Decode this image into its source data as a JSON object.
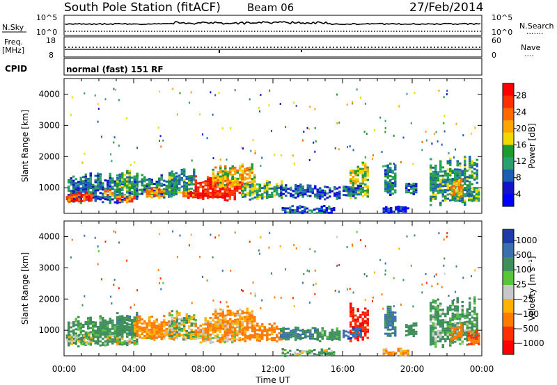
{
  "header": {
    "station": "South Pole Station (fitACF)",
    "beam": "Beam 06",
    "date": "27/Feb/2014"
  },
  "summary_panels": {
    "nsky_label": "N.Sky",
    "nsearch_label": "N.Search",
    "nsky_ticks": [
      "10^5",
      "10^0"
    ],
    "nsearch_ticks": [
      "10^5",
      "10^0"
    ],
    "freq_label": "Freq.",
    "freq_unit": "[MHz]",
    "freq_ticks": [
      "18",
      "8"
    ],
    "nave_label": "Nave",
    "nave_ticks": [
      "60",
      "0"
    ],
    "cpid_label": "CPID",
    "cpid_text": "normal (fast) 151 RF",
    "search_legend": "·······",
    "nave_legend": "····"
  },
  "chart_data": [
    {
      "type": "heatmap",
      "name": "power",
      "ylabel": "Slant Range [km]",
      "xlabel": "",
      "yticks": [
        1000,
        2000,
        3000,
        4000
      ],
      "ylim": [
        180,
        4500
      ],
      "xlim_hours": [
        0,
        24
      ],
      "colorbar_label": "Power [dB]",
      "colorbar_ticks": [
        "28",
        "24",
        "20",
        "16",
        "12",
        "8",
        "4"
      ],
      "colorbar_colors": [
        "#ff0000",
        "#ff3000",
        "#ff6a00",
        "#ffa500",
        "#f0d800",
        "#1e9a2e",
        "#2d9e6e",
        "#1a5fb0",
        "#1313cc",
        "#0000ff"
      ]
    },
    {
      "type": "heatmap",
      "name": "velocity",
      "ylabel": "Slant Range [km]",
      "xlabel": "Time UT",
      "xticks": [
        "00:00",
        "04:00",
        "08:00",
        "12:00",
        "16:00",
        "20:00",
        "00:00"
      ],
      "yticks": [
        1000,
        2000,
        3000,
        4000
      ],
      "ylim": [
        180,
        4500
      ],
      "xlim_hours": [
        0,
        24
      ],
      "colorbar_label": "Velocity [m s⁻¹]",
      "colorbar_ticks": [
        "1000",
        "500",
        "100",
        "25",
        "−25",
        "−100",
        "−500",
        "−1000"
      ],
      "colorbar_colors": [
        "#1e3ca8",
        "#3a6fb0",
        "#3f8f5a",
        "#58c43c",
        "#c8c8c8",
        "#ffb000",
        "#ff7a00",
        "#ff3000",
        "#ff0000"
      ]
    }
  ],
  "echo_regions": [
    {
      "t": [
        0.2,
        4.2
      ],
      "r": [
        500,
        1500
      ],
      "p": 10,
      "v": 150
    },
    {
      "t": [
        0.1,
        1.6
      ],
      "r": [
        550,
        900
      ],
      "p": 27,
      "v": 60
    },
    {
      "t": [
        2.3,
        2.8
      ],
      "r": [
        750,
        1000
      ],
      "p": 22,
      "v": 40
    },
    {
      "t": [
        3.0,
        4.0
      ],
      "r": [
        550,
        800
      ],
      "p": 24,
      "v": -20
    },
    {
      "t": [
        3.0,
        4.2
      ],
      "r": [
        800,
        1600
      ],
      "p": 14,
      "v": 200
    },
    {
      "t": [
        4.0,
        6.5
      ],
      "r": [
        700,
        1500
      ],
      "p": 12,
      "v": -150
    },
    {
      "t": [
        4.7,
        5.7
      ],
      "r": [
        700,
        1050
      ],
      "p": 24,
      "v": -80
    },
    {
      "t": [
        6.0,
        7.5
      ],
      "r": [
        750,
        1700
      ],
      "p": 13,
      "v": 10
    },
    {
      "t": [
        6.8,
        7.4
      ],
      "r": [
        700,
        900
      ],
      "p": 26,
      "v": 30
    },
    {
      "t": [
        7.5,
        10.2
      ],
      "r": [
        600,
        1450
      ],
      "p": 30,
      "v": -80
    },
    {
      "t": [
        8.5,
        11.0
      ],
      "r": [
        1000,
        1800
      ],
      "p": 20,
      "v": -120
    },
    {
      "t": [
        10.2,
        12.5
      ],
      "r": [
        650,
        1250
      ],
      "p": 15,
      "v": -200
    },
    {
      "t": [
        12.4,
        14.5
      ],
      "r": [
        700,
        1150
      ],
      "p": 9,
      "v": 250
    },
    {
      "t": [
        12.5,
        15.5
      ],
      "r": [
        200,
        450
      ],
      "p": 8,
      "v": 80
    },
    {
      "t": [
        14.5,
        15.8
      ],
      "r": [
        650,
        1100
      ],
      "p": 9,
      "v": 150
    },
    {
      "t": [
        16.4,
        17.4
      ],
      "r": [
        650,
        1900
      ],
      "p": 18,
      "v": -700
    },
    {
      "t": [
        16.0,
        17.0
      ],
      "r": [
        750,
        1100
      ],
      "p": 10,
      "v": 600
    },
    {
      "t": [
        18.3,
        19.8
      ],
      "r": [
        200,
        450
      ],
      "p": 6,
      "v": -100
    },
    {
      "t": [
        18.4,
        19.0
      ],
      "r": [
        700,
        1900
      ],
      "p": 12,
      "v": 300
    },
    {
      "t": [
        19.6,
        20.2
      ],
      "r": [
        800,
        1300
      ],
      "p": 10,
      "v": 200
    },
    {
      "t": [
        21.0,
        23.7
      ],
      "r": [
        450,
        2100
      ],
      "p": 13,
      "v": 120
    },
    {
      "t": [
        22.2,
        22.8
      ],
      "r": [
        700,
        1300
      ],
      "p": 22,
      "v": -200
    },
    {
      "t": [
        23.2,
        23.8
      ],
      "r": [
        550,
        1050
      ],
      "p": 15,
      "v": -400
    }
  ]
}
